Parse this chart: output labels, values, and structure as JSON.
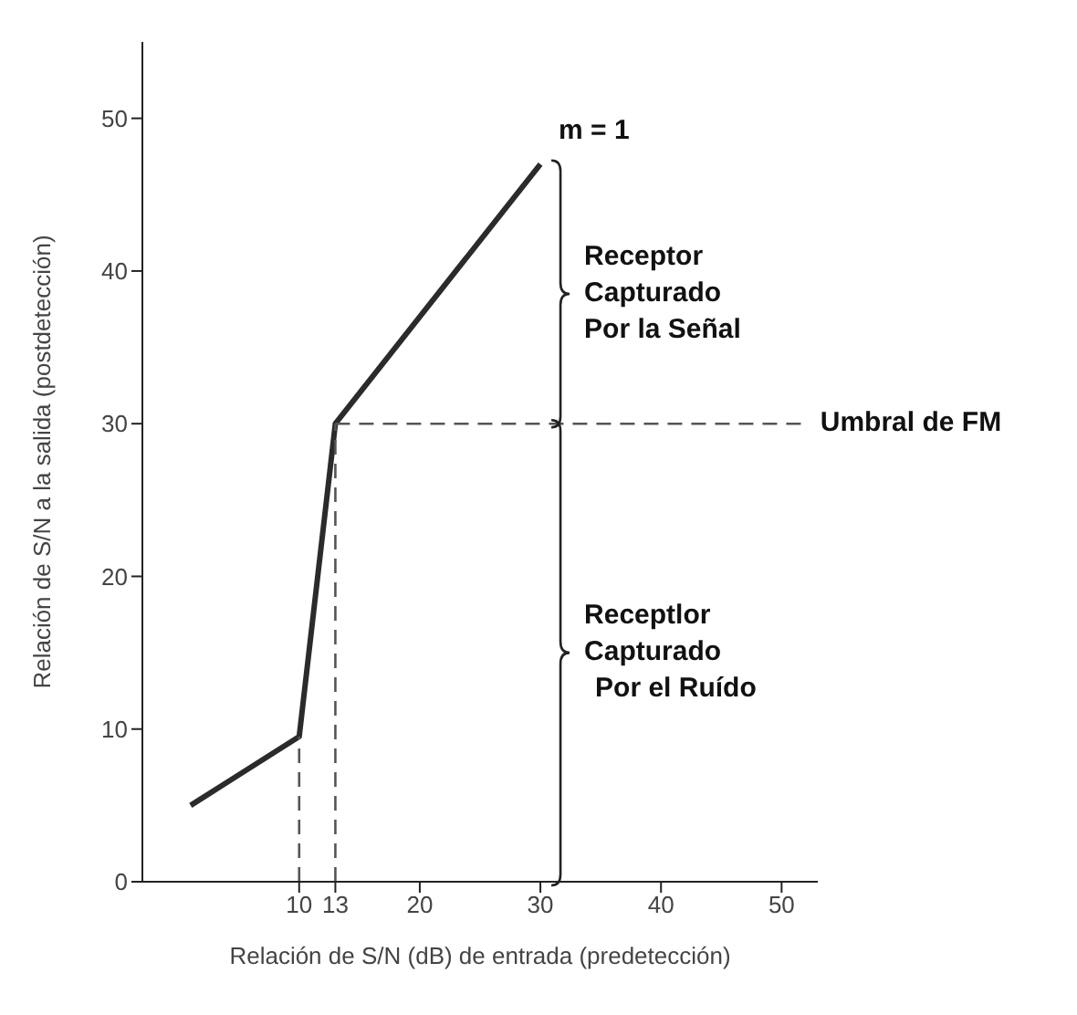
{
  "chart_data": {
    "type": "line",
    "xlabel": "Relación de S/N (dB) de entrada (predetección)",
    "ylabel": "Relación de S/N a la salida (postdetección)",
    "xlim": [
      -3,
      53
    ],
    "ylim": [
      0,
      55
    ],
    "xticks": [
      10,
      13,
      20,
      30,
      40,
      50
    ],
    "yticks": [
      0,
      10,
      20,
      30,
      40,
      50
    ],
    "marker": "none",
    "line_style": "solid",
    "series": [
      {
        "x": [
          1,
          10,
          13,
          30
        ],
        "values": [
          5,
          9.5,
          30,
          47
        ],
        "color": "#2b2b2b"
      },
      {
        "x": [
          10,
          10
        ],
        "values": [
          0,
          9.5
        ],
        "color": "#555555",
        "line_style": "dashed"
      },
      {
        "x": [
          13,
          13
        ],
        "values": [
          0,
          30
        ],
        "color": "#555555",
        "line_style": "dashed"
      },
      {
        "x": [
          13,
          52
        ],
        "values": [
          30,
          30
        ],
        "color": "#555555",
        "line_style": "dashed"
      }
    ],
    "annotations": [
      {
        "text": "m = 1",
        "x": 30,
        "y": 47
      },
      {
        "text": "Umbral de FM",
        "x": 52,
        "y": 30
      },
      "Receptor Capturado Por la Señal",
      "Receptlor Capturado Por el Ruído"
    ]
  }
}
